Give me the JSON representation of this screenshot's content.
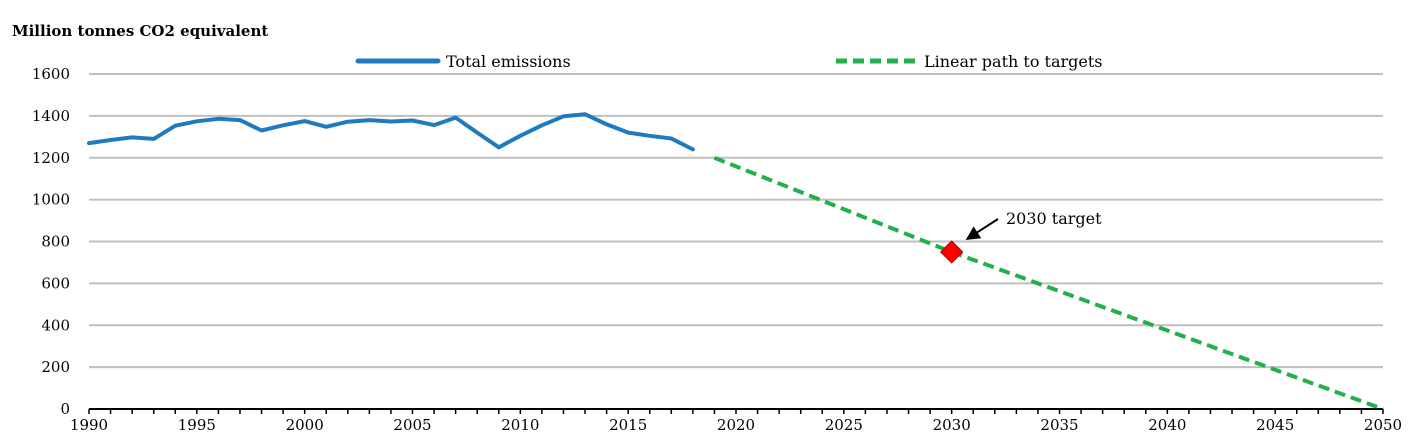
{
  "chart_data": {
    "type": "line",
    "title": "",
    "ylabel": "Million tonnes CO2 equivalent",
    "xlabel": "",
    "xlim": [
      1990,
      2050
    ],
    "ylim": [
      0,
      1600
    ],
    "grid": true,
    "legend_position": "top",
    "x_ticks": [
      "1990",
      "1995",
      "2000",
      "2005",
      "2010",
      "2015",
      "2020",
      "2025",
      "2030",
      "2035",
      "2040",
      "2045",
      "2050"
    ],
    "y_ticks": [
      "0",
      "200",
      "400",
      "600",
      "800",
      "1000",
      "1200",
      "1400",
      "1600"
    ],
    "series": [
      {
        "name": "Total emissions",
        "color": "#1f7bbf",
        "style": "solid",
        "x": [
          1990,
          1991,
          1992,
          1993,
          1994,
          1995,
          1996,
          1997,
          1998,
          1999,
          2000,
          2001,
          2002,
          2003,
          2004,
          2005,
          2006,
          2007,
          2008,
          2009,
          2010,
          2011,
          2012,
          2013,
          2014,
          2015,
          2016,
          2017,
          2018
        ],
        "y": [
          1270,
          1285,
          1297,
          1290,
          1353,
          1374,
          1386,
          1380,
          1330,
          1355,
          1375,
          1348,
          1372,
          1380,
          1373,
          1378,
          1356,
          1392,
          1320,
          1250,
          1305,
          1355,
          1398,
          1408,
          1360,
          1320,
          1305,
          1292,
          1240
        ]
      },
      {
        "name": "Linear path to targets",
        "color": "#22b04a",
        "style": "dashed",
        "x": [
          2019,
          2030,
          2050
        ],
        "y": [
          1200,
          750,
          0
        ]
      }
    ],
    "annotations": [
      {
        "text": "2030 target",
        "x": 2030,
        "y": 750,
        "marker": "diamond",
        "color": "#ff0000"
      }
    ]
  }
}
